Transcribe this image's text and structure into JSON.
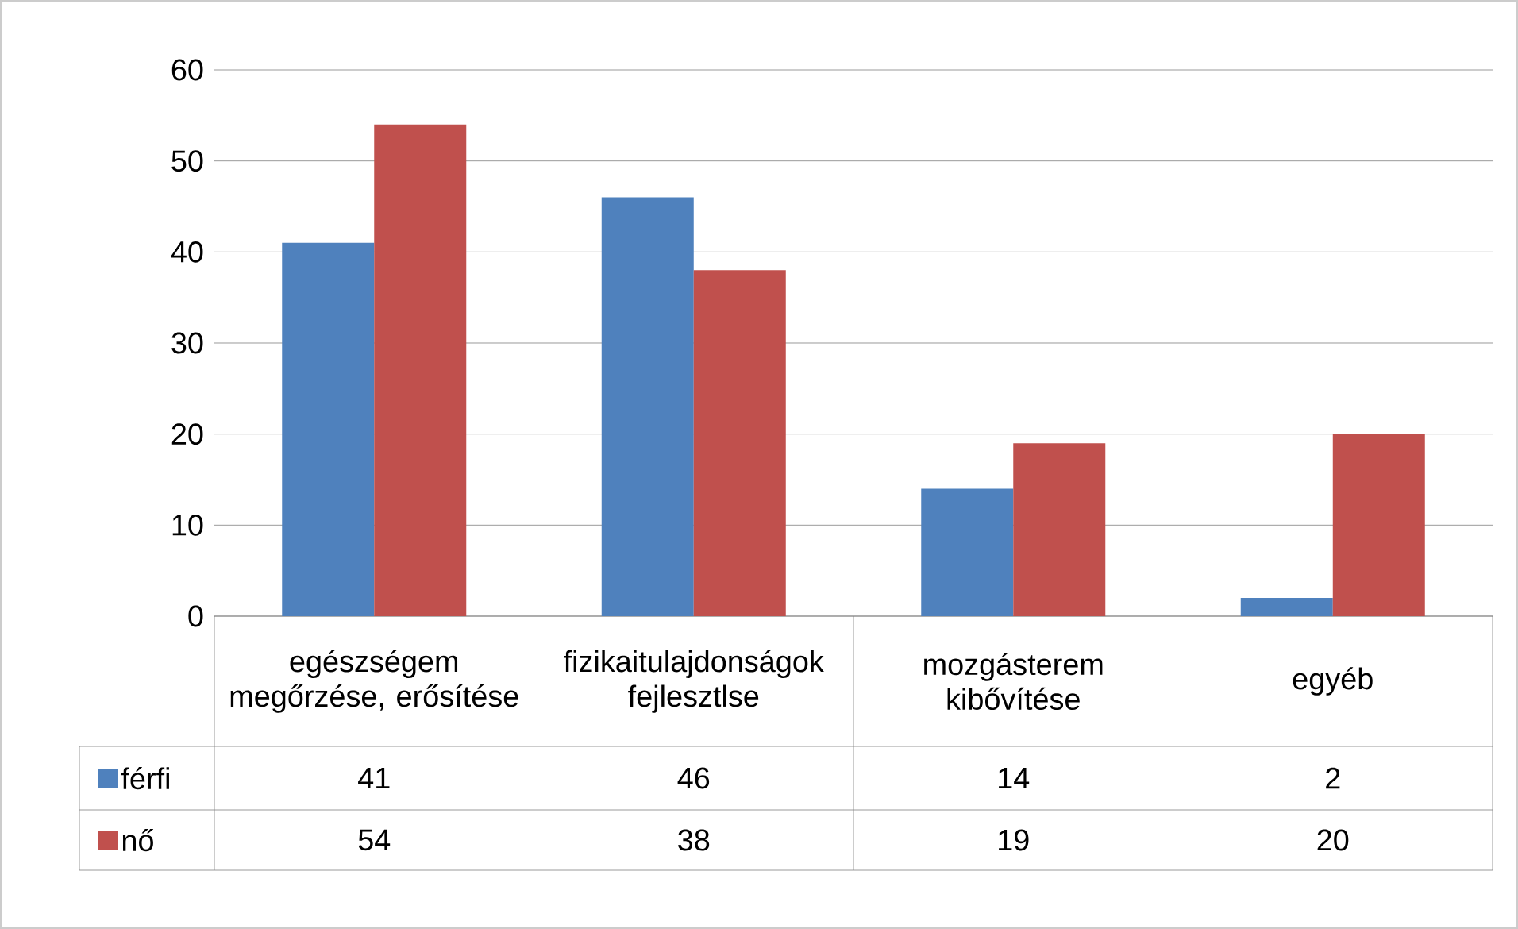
{
  "chart_data": {
    "type": "bar",
    "categories": [
      "egészségem megőrzése, erősítése",
      "fizikaitulajdonságok fejlesztlse",
      "mozgásterem kibővítése",
      "egyéb"
    ],
    "series": [
      {
        "name": "férfi",
        "color": "#4f81bd",
        "values": [
          41,
          46,
          14,
          2
        ]
      },
      {
        "name": "nő",
        "color": "#c0504d",
        "values": [
          54,
          38,
          19,
          20
        ]
      }
    ],
    "ylim": [
      0,
      60
    ],
    "yticks": [
      0,
      10,
      20,
      30,
      40,
      50,
      60
    ],
    "grid": "y",
    "legend": "bottom",
    "data_labels": true
  }
}
